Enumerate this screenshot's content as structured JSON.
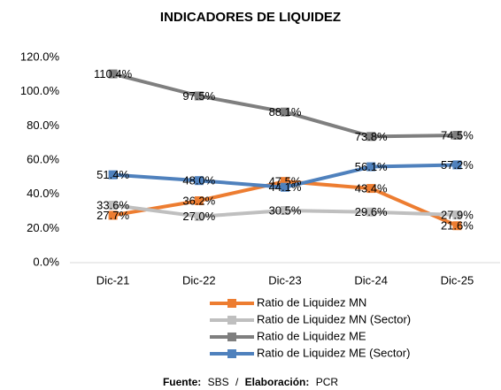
{
  "chart_data": {
    "type": "line",
    "title": "INDICADORES DE LIQUIDEZ",
    "categories": [
      "Dic-21",
      "Dic-22",
      "Dic-23",
      "Dic-24",
      "Dic-25"
    ],
    "series": [
      {
        "name": "Ratio de Liquidez MN",
        "color": "#ed7d31",
        "values": [
          27.7,
          36.2,
          47.5,
          43.4,
          21.6
        ],
        "value_labels": [
          "27.7%",
          "36.2%",
          "47.5%",
          "43.4%",
          "21.6%"
        ]
      },
      {
        "name": "Ratio de Liquidez MN (Sector)",
        "color": "#bfbfbf",
        "values": [
          33.6,
          27.0,
          30.5,
          29.6,
          27.9
        ],
        "value_labels": [
          "33.6%",
          "27.0%",
          "30.5%",
          "29.6%",
          "27.9%"
        ]
      },
      {
        "name": "Ratio de Liquidez ME",
        "color": "#7f7f7f",
        "values": [
          110.4,
          97.5,
          88.1,
          73.8,
          74.5
        ],
        "value_labels": [
          "110.4%",
          "97.5%",
          "88.1%",
          "73.8%",
          "74.5%"
        ]
      },
      {
        "name": "Ratio de Liquidez ME (Sector)",
        "color": "#4f81bd",
        "values": [
          51.4,
          48.0,
          44.1,
          56.1,
          57.2
        ],
        "value_labels": [
          "51.4%",
          "48.0%",
          "44.1%",
          "56.1%",
          "57.2%"
        ]
      }
    ],
    "ylim": [
      0,
      120
    ],
    "yticks": [
      {
        "value": 0,
        "label": "0.0%"
      },
      {
        "value": 20,
        "label": "20.0%"
      },
      {
        "value": 40,
        "label": "40.0%"
      },
      {
        "value": 60,
        "label": "60.0%"
      },
      {
        "value": 80,
        "label": "80.0%"
      },
      {
        "value": 100,
        "label": "100.0%"
      },
      {
        "value": 120,
        "label": "120.0%"
      }
    ],
    "grid": false,
    "legend": "bottom",
    "footer": {
      "source_label": "Fuente:",
      "source": "SBS",
      "separator": "/",
      "credit_label": "Elaboración:",
      "credit": "PCR"
    }
  }
}
